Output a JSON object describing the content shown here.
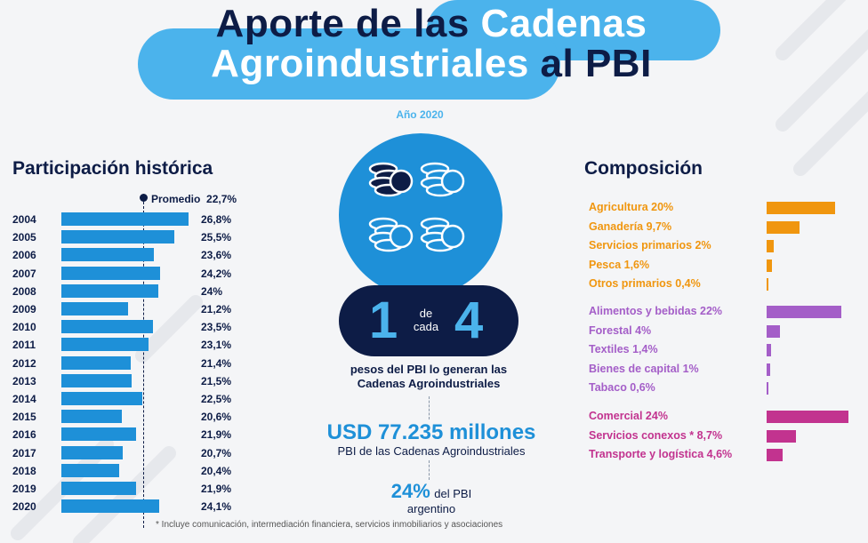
{
  "title": {
    "line1_dark": "Aporte de las",
    "line1_light": "Cadenas",
    "line2_light": "Agroindustriales",
    "line2_dark": "al PBI"
  },
  "colors": {
    "navy": "#0d1c46",
    "blue": "#1e90d8",
    "light_blue": "#4bb3ec",
    "orange": "#f0960f",
    "purple": "#a45ec8",
    "magenta": "#c2338f"
  },
  "left": {
    "heading": "Participación histórica",
    "average_label": "Promedio",
    "average_value": "22,7%"
  },
  "center": {
    "year": "Año 2020",
    "ratio_left": "1",
    "ratio_mid_1": "de",
    "ratio_mid_2": "cada",
    "ratio_right": "4",
    "ratio_caption_1": "pesos del PBI lo generan las",
    "ratio_caption_2": "Cadenas Agroindustriales",
    "usd_value": "USD 77.235 millones",
    "usd_caption": "PBI de las Cadenas Agroindustriales",
    "pct_value": "24%",
    "pct_suffix": "del PBI",
    "pct_caption": "argentino",
    "icon": "coin-stacks-icon"
  },
  "right": {
    "heading": "Composición"
  },
  "footnote": "* Incluye comunicación, intermediación financiera, servicios inmobiliarios y asociaciones",
  "chart_data": [
    {
      "type": "bar",
      "orientation": "horizontal",
      "title": "Participación histórica",
      "categories": [
        "2004",
        "2005",
        "2006",
        "2007",
        "2008",
        "2009",
        "2010",
        "2011",
        "2012",
        "2013",
        "2014",
        "2015",
        "2016",
        "2017",
        "2018",
        "2019",
        "2020"
      ],
      "values": [
        26.8,
        25.5,
        23.6,
        24.2,
        24,
        21.2,
        23.5,
        23.1,
        21.4,
        21.5,
        22.5,
        20.6,
        21.9,
        20.7,
        20.4,
        21.9,
        24.1
      ],
      "labels": [
        "26,8%",
        "25,5%",
        "23,6%",
        "24,2%",
        "24%",
        "21,2%",
        "23,5%",
        "23,1%",
        "21,4%",
        "21,5%",
        "22,5%",
        "20,6%",
        "21,9%",
        "20,7%",
        "20,4%",
        "21,9%",
        "24,1%"
      ],
      "reference_line": {
        "label": "Promedio",
        "value": 22.7
      },
      "color": "#1e90d8"
    },
    {
      "type": "bar",
      "orientation": "horizontal",
      "title": "Composición",
      "groups": [
        {
          "color": "#f0960f",
          "items": [
            {
              "label": "Agricultura 20%",
              "value": 20
            },
            {
              "label": "Ganadería 9,7%",
              "value": 9.7
            },
            {
              "label": "Servicios primarios 2%",
              "value": 2
            },
            {
              "label": "Pesca 1,6%",
              "value": 1.6
            },
            {
              "label": "Otros primarios 0,4%",
              "value": 0.4
            }
          ]
        },
        {
          "color": "#a45ec8",
          "items": [
            {
              "label": "Alimentos y bebidas 22%",
              "value": 22
            },
            {
              "label": "Forestal 4%",
              "value": 4
            },
            {
              "label": "Textiles 1,4%",
              "value": 1.4
            },
            {
              "label": "Bienes de capital 1%",
              "value": 1
            },
            {
              "label": "Tabaco 0,6%",
              "value": 0.6
            }
          ]
        },
        {
          "color": "#c2338f",
          "items": [
            {
              "label": "Comercial 24%",
              "value": 24
            },
            {
              "label": "Servicios conexos * 8,7%",
              "value": 8.7
            },
            {
              "label": "Transporte y logística 4,6%",
              "value": 4.6
            }
          ]
        }
      ]
    }
  ]
}
